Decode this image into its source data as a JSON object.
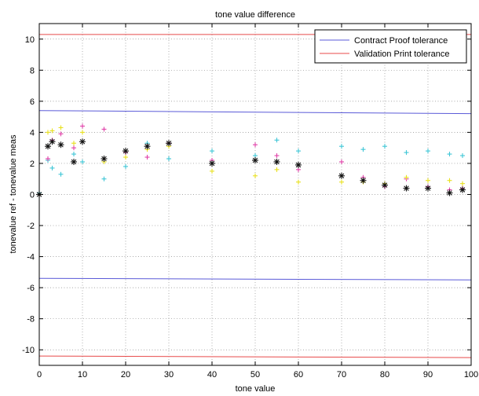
{
  "chart_data": {
    "type": "scatter",
    "title": "tone value difference",
    "xlabel": "tone value",
    "ylabel": "tonevalue ref - tonevalue meas",
    "xlim": [
      0,
      100
    ],
    "ylim": [
      -11,
      11
    ],
    "xticks": [
      0,
      10,
      20,
      30,
      40,
      50,
      60,
      70,
      80,
      90,
      100
    ],
    "yticks": [
      -10,
      -8,
      -6,
      -4,
      -2,
      0,
      2,
      4,
      6,
      8,
      10
    ],
    "grid": true,
    "legend": {
      "position": "top-right",
      "entries": [
        {
          "label": "Contract Proof tolerance",
          "color": "#5a5ad8"
        },
        {
          "label": "Validation Print tolerance",
          "color": "#e84a4a"
        }
      ]
    },
    "x": [
      0,
      2,
      3,
      5,
      8,
      10,
      15,
      20,
      25,
      30,
      40,
      50,
      55,
      60,
      70,
      75,
      80,
      85,
      90,
      95,
      98
    ],
    "tolerance_lines": [
      {
        "name": "Contract Proof tolerance",
        "color": "#5a5ad8",
        "upper": [
          [
            0,
            5.4
          ],
          [
            100,
            5.2
          ]
        ],
        "lower": [
          [
            0,
            -5.4
          ],
          [
            100,
            -5.5
          ]
        ]
      },
      {
        "name": "Validation Print tolerance",
        "color": "#e84a4a",
        "upper": [
          [
            0,
            10.3
          ],
          [
            100,
            10.3
          ]
        ],
        "lower": [
          [
            0,
            -10.4
          ],
          [
            100,
            -10.5
          ]
        ]
      }
    ],
    "series": [
      {
        "color": "#3ec6d6",
        "marker": "plus",
        "values": [
          0.1,
          2.2,
          1.7,
          1.3,
          2.6,
          2.1,
          1.0,
          1.8,
          3.3,
          2.3,
          2.8,
          2.5,
          3.5,
          2.8,
          3.1,
          2.9,
          3.1,
          2.7,
          2.8,
          2.6,
          2.5
        ]
      },
      {
        "color": "#e040a8",
        "marker": "plus",
        "values": [
          0.0,
          2.3,
          3.5,
          3.9,
          3.0,
          4.4,
          4.2,
          2.7,
          2.4,
          3.3,
          2.2,
          3.2,
          2.5,
          1.6,
          2.1,
          1.1,
          0.5,
          1.0,
          0.5,
          0.3,
          0.4
        ]
      },
      {
        "color": "#e8e020",
        "marker": "plus",
        "values": [
          0.0,
          4.0,
          4.1,
          4.3,
          3.3,
          4.0,
          2.1,
          2.4,
          2.9,
          3.1,
          1.5,
          1.2,
          1.6,
          0.8,
          0.8,
          0.8,
          0.7,
          1.1,
          0.9,
          0.9,
          0.7
        ]
      },
      {
        "color": "#111111",
        "marker": "asterisk",
        "values": [
          0.0,
          3.1,
          3.4,
          3.2,
          2.1,
          3.4,
          2.3,
          2.8,
          3.1,
          3.3,
          2.0,
          2.2,
          2.1,
          1.9,
          1.2,
          0.9,
          0.6,
          0.4,
          0.4,
          0.1,
          0.3
        ]
      }
    ]
  }
}
